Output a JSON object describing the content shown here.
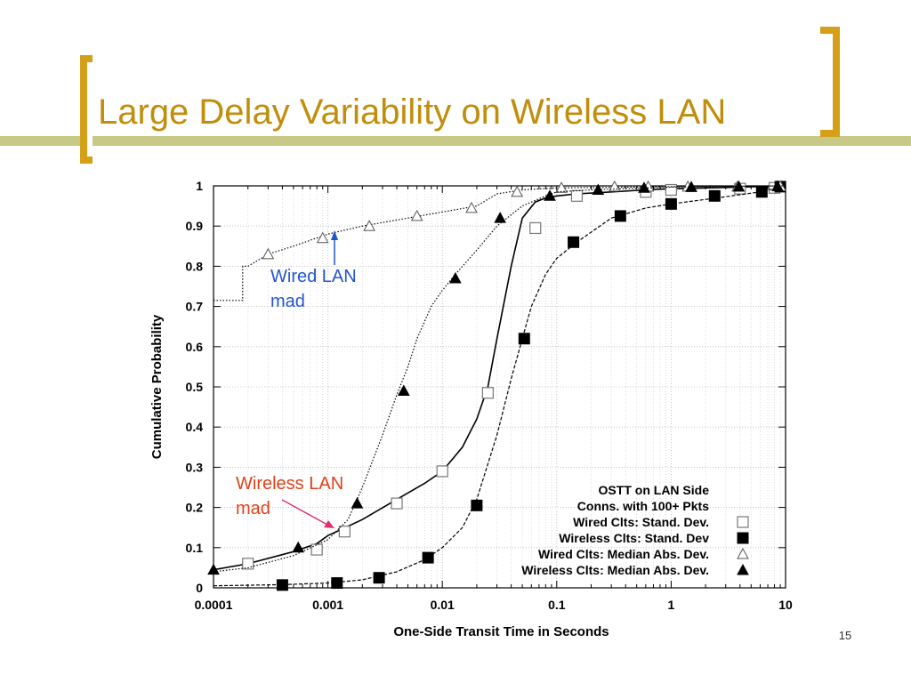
{
  "slide": {
    "title": "Large Delay Variability on Wireless LAN",
    "page_number": "15",
    "accent_color": "#c9c987",
    "bracket_color": "#d4a017",
    "title_color": "#c08e0a"
  },
  "annotations": {
    "wired_label": "Wired LAN\nmad",
    "wired_color": "#2255cc",
    "wireless_label": "Wireless LAN\nmad",
    "wireless_color": "#e0401a"
  },
  "chart_data": {
    "type": "line",
    "xlabel": "One-Side Transit Time in Seconds",
    "ylabel": "Cumulative Probability",
    "xscale": "log",
    "xlim": [
      0.0001,
      10
    ],
    "ylim": [
      0,
      1
    ],
    "x_ticks": [
      0.0001,
      0.001,
      0.01,
      0.1,
      1,
      10
    ],
    "x_tick_labels": [
      "0.0001",
      "0.001",
      "0.01",
      "0.1",
      "1",
      "10"
    ],
    "y_ticks": [
      0,
      0.1,
      0.2,
      0.3,
      0.4,
      0.5,
      0.6,
      0.7,
      0.8,
      0.9,
      1
    ],
    "y_tick_labels": [
      "0",
      "0.1",
      "0.2",
      "0.3",
      "0.4",
      "0.5",
      "0.6",
      "0.7",
      "0.8",
      "0.9",
      "1"
    ],
    "grid": true,
    "legend_position": "bottom-right",
    "legend_title": [
      "OSTT on LAN Side",
      "Conns. with 100+ Pkts"
    ],
    "series": [
      {
        "name": "Wired Clts: Stand. Dev.",
        "marker": "open-square",
        "line": "solid",
        "x": [
          0.0001,
          0.0002,
          0.0005,
          0.0008,
          0.001,
          0.0013,
          0.002,
          0.004,
          0.007,
          0.01,
          0.015,
          0.02,
          0.025,
          0.03,
          0.04,
          0.05,
          0.065,
          0.08,
          0.1,
          0.15,
          0.3,
          0.6,
          1,
          3,
          10
        ],
        "y": [
          0.045,
          0.06,
          0.09,
          0.11,
          0.13,
          0.145,
          0.17,
          0.22,
          0.26,
          0.29,
          0.35,
          0.42,
          0.5,
          0.62,
          0.8,
          0.92,
          0.96,
          0.97,
          0.975,
          0.98,
          0.985,
          0.99,
          0.993,
          0.996,
          1.0
        ],
        "markers_x": [
          0.0002,
          0.0008,
          0.0014,
          0.004,
          0.01,
          0.025,
          0.065,
          0.15,
          0.6,
          1.0,
          4.0,
          8.0
        ],
        "markers_y": [
          0.06,
          0.095,
          0.14,
          0.21,
          0.29,
          0.485,
          0.895,
          0.975,
          0.985,
          0.99,
          0.993,
          0.995
        ]
      },
      {
        "name": "Wireless Clts: Stand. Dev",
        "marker": "filled-square",
        "line": "dashed",
        "x": [
          0.0001,
          0.0004,
          0.001,
          0.002,
          0.004,
          0.007,
          0.01,
          0.015,
          0.02,
          0.03,
          0.04,
          0.05,
          0.06,
          0.08,
          0.1,
          0.15,
          0.3,
          0.6,
          1,
          2.5,
          6,
          10
        ],
        "y": [
          0.005,
          0.008,
          0.012,
          0.02,
          0.04,
          0.07,
          0.1,
          0.15,
          0.22,
          0.38,
          0.52,
          0.62,
          0.7,
          0.78,
          0.82,
          0.86,
          0.92,
          0.945,
          0.955,
          0.97,
          0.985,
          1.0
        ],
        "markers_x": [
          0.0004,
          0.0012,
          0.0028,
          0.0075,
          0.02,
          0.052,
          0.14,
          0.36,
          1.0,
          2.4,
          6.2,
          9.0
        ],
        "markers_y": [
          0.007,
          0.012,
          0.025,
          0.075,
          0.205,
          0.62,
          0.86,
          0.925,
          0.955,
          0.975,
          0.985,
          0.998
        ]
      },
      {
        "name": "Wired Clts: Median Abs. Dev.",
        "marker": "open-triangle",
        "line": "dotted",
        "x": [
          0.0001,
          0.00018,
          0.00018,
          0.0002,
          0.0002,
          0.0003,
          0.0005,
          0.001,
          0.002,
          0.005,
          0.01,
          0.02,
          0.03,
          0.05,
          0.1,
          1,
          10
        ],
        "y": [
          0.715,
          0.715,
          0.8,
          0.8,
          0.8,
          0.83,
          0.85,
          0.88,
          0.9,
          0.92,
          0.935,
          0.95,
          0.98,
          0.99,
          0.995,
          0.998,
          1.0
        ],
        "markers_x": [
          0.0003,
          0.0009,
          0.0023,
          0.006,
          0.018,
          0.045,
          0.11,
          0.32,
          0.63,
          1.4,
          3.8,
          9.0
        ],
        "markers_y": [
          0.83,
          0.87,
          0.9,
          0.925,
          0.945,
          0.985,
          0.995,
          0.998,
          0.998,
          0.998,
          0.998,
          0.999
        ]
      },
      {
        "name": "Wireless Clts: Median Abs. Dev.",
        "marker": "filled-triangle",
        "line": "dotted",
        "x": [
          0.0001,
          0.0002,
          0.0005,
          0.001,
          0.0015,
          0.002,
          0.003,
          0.004,
          0.005,
          0.006,
          0.008,
          0.01,
          0.013,
          0.02,
          0.03,
          0.05,
          0.08,
          0.1,
          0.2,
          1,
          10
        ],
        "y": [
          0.04,
          0.05,
          0.08,
          0.12,
          0.17,
          0.25,
          0.38,
          0.48,
          0.55,
          0.62,
          0.7,
          0.74,
          0.78,
          0.84,
          0.9,
          0.95,
          0.975,
          0.985,
          0.99,
          0.997,
          1.0
        ],
        "markers_x": [
          0.0001,
          0.00055,
          0.0018,
          0.0046,
          0.013,
          0.032,
          0.087,
          0.23,
          0.58,
          1.5,
          3.9,
          8.5
        ],
        "markers_y": [
          0.045,
          0.1,
          0.21,
          0.49,
          0.77,
          0.92,
          0.975,
          0.99,
          0.995,
          0.997,
          0.998,
          0.999
        ]
      }
    ]
  }
}
